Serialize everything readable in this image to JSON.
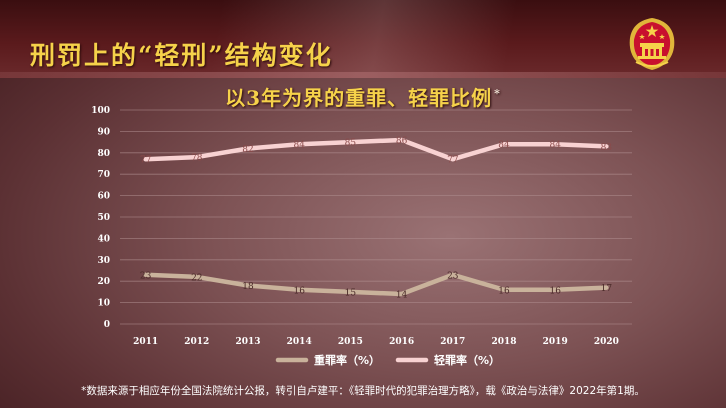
{
  "slide": {
    "title": "刑罚上的“轻刑”结构变化",
    "footnote": "*数据来源于相应年份全国法院统计公报，转引自卢建平：《轻罪时代的犯罪治理方略》，载《政治与法律》2022年第1期。"
  },
  "emblem_icon": "national-emblem-icon",
  "colors": {
    "title": "#f6d24a",
    "heavy_series": "#c9b29b",
    "light_series": "#f8d2d2",
    "gridline": "#b08e8f"
  },
  "chart_data": {
    "type": "line",
    "title": "以3年为界的重罪、轻罪比例",
    "title_mark": "*",
    "xlabel": "",
    "ylabel": "",
    "x": [
      "2011",
      "2012",
      "2013",
      "2014",
      "2015",
      "2016",
      "2017",
      "2018",
      "2019",
      "2020"
    ],
    "ylim": [
      0,
      100
    ],
    "yticks": [
      0,
      10,
      20,
      30,
      40,
      50,
      60,
      70,
      80,
      90,
      100
    ],
    "grid": true,
    "legend_position": "bottom",
    "series": [
      {
        "name": "重罪率（%）",
        "values": [
          23,
          22,
          18,
          16,
          15,
          14,
          23,
          16,
          16,
          17
        ]
      },
      {
        "name": "轻罪率（%）",
        "values": [
          77,
          78,
          82,
          84,
          85,
          86,
          77,
          84,
          84,
          83
        ]
      }
    ]
  }
}
